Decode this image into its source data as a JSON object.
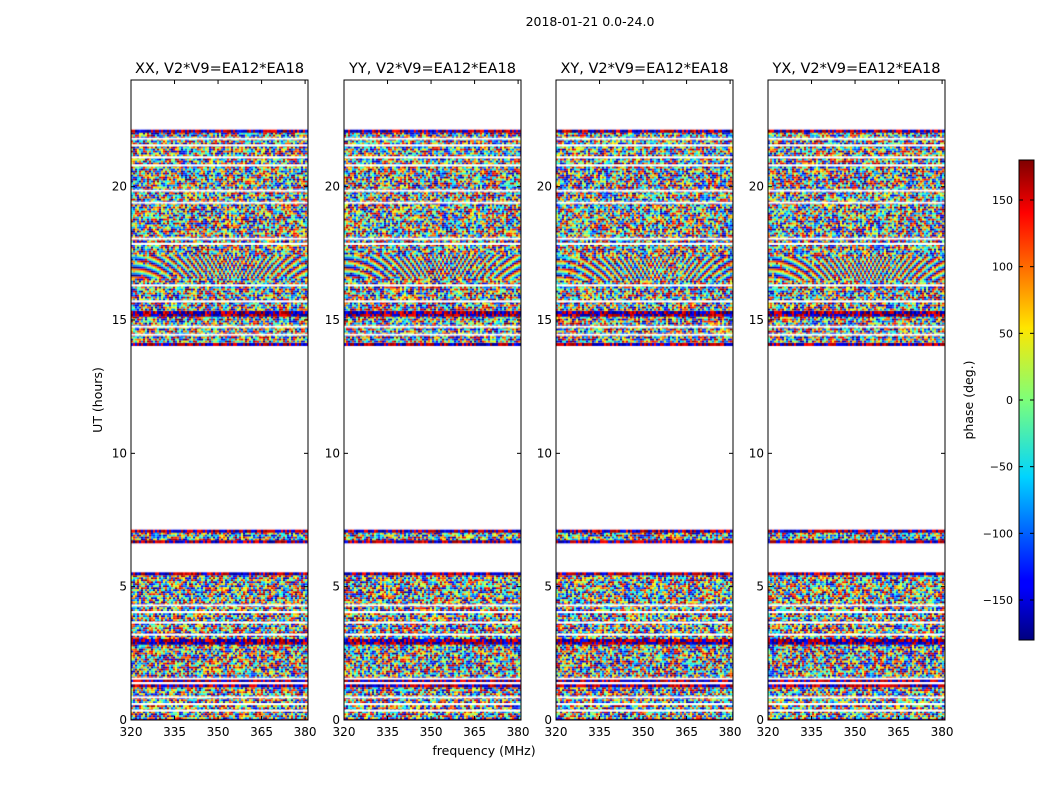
{
  "figure": {
    "suptitle": "2018-01-21 0.0-24.0",
    "xlabel": "frequency (MHz)",
    "ylabel": "UT (hours)"
  },
  "chart_data": {
    "type": "heatmap",
    "title": "2018-01-21 0.0-24.0",
    "xlabel": "frequency (MHz)",
    "ylabel": "UT (hours)",
    "xlim": [
      320,
      381
    ],
    "ylim": [
      0,
      24
    ],
    "xticks": [
      320,
      335,
      350,
      365,
      380
    ],
    "yticks": [
      0,
      5,
      10,
      15,
      20
    ],
    "colorbar": {
      "label": "phase (deg.)",
      "range": [
        -180,
        180
      ],
      "ticks": [
        -150,
        -100,
        -50,
        0,
        50,
        100,
        150
      ],
      "tick_labels": [
        "−150",
        "−100",
        "−50",
        "0",
        "50",
        "100",
        "150"
      ],
      "colormap": "jet"
    },
    "data_blocks_hours": [
      [
        0.0,
        1.3
      ],
      [
        1.5,
        2.9
      ],
      [
        3.0,
        5.5
      ],
      [
        6.7,
        7.1
      ],
      [
        14.1,
        15.2
      ],
      [
        15.3,
        22.1
      ]
    ],
    "gap_lines_hours": [
      0.35,
      0.6,
      0.85,
      1.55,
      3.2,
      3.65,
      4.05,
      4.3,
      14.45,
      14.75,
      15.7,
      16.3,
      17.85,
      18.05,
      19.4,
      19.85,
      20.8,
      21.1,
      21.55,
      21.8
    ],
    "panels": [
      {
        "name": "XX",
        "title": "XX, V2*V9=EA12*EA18",
        "fringe_hours": [
          16.6,
          17.5
        ]
      },
      {
        "name": "YY",
        "title": "YY, V2*V9=EA12*EA18",
        "fringe_hours": [
          16.6,
          17.5
        ]
      },
      {
        "name": "XY",
        "title": "XY, V2*V9=EA12*EA18",
        "fringe_hours": [
          16.5,
          17.4
        ]
      },
      {
        "name": "YX",
        "title": "YX, V2*V9=EA12*EA18",
        "fringe_hours": [
          16.5,
          17.4
        ]
      }
    ]
  }
}
